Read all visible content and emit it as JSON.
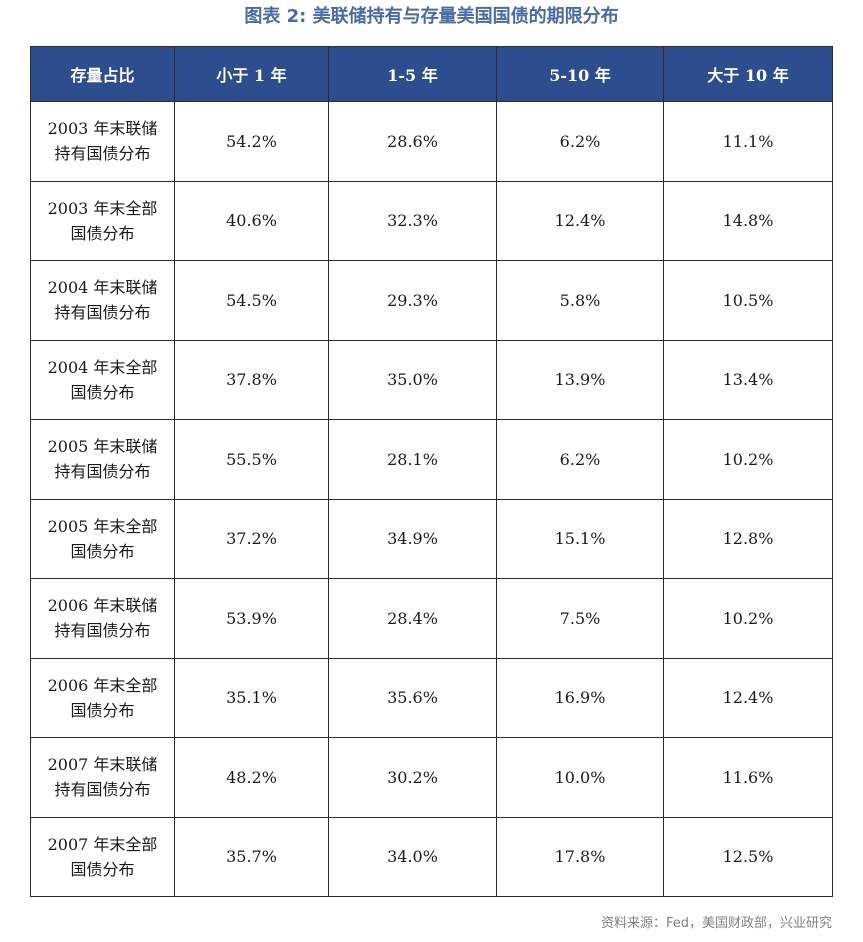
{
  "title": "图表 2:   美联储持有与存量美国国债的期限分布",
  "table": {
    "headers": [
      "存量占比",
      "小于 1 年",
      "1-5 年",
      "5-10 年",
      "大于 10 年"
    ],
    "rows": [
      {
        "label": "2003 年末联储持有国债分布",
        "values": [
          "54.2%",
          "28.6%",
          "6.2%",
          "11.1%"
        ]
      },
      {
        "label": "2003 年末全部国债分布",
        "values": [
          "40.6%",
          "32.3%",
          "12.4%",
          "14.8%"
        ]
      },
      {
        "label": "2004 年末联储持有国债分布",
        "values": [
          "54.5%",
          "29.3%",
          "5.8%",
          "10.5%"
        ]
      },
      {
        "label": "2004 年末全部国债分布",
        "values": [
          "37.8%",
          "35.0%",
          "13.9%",
          "13.4%"
        ]
      },
      {
        "label": "2005 年末联储持有国债分布",
        "values": [
          "55.5%",
          "28.1%",
          "6.2%",
          "10.2%"
        ]
      },
      {
        "label": "2005 年末全部国债分布",
        "values": [
          "37.2%",
          "34.9%",
          "15.1%",
          "12.8%"
        ]
      },
      {
        "label": "2006 年末联储持有国债分布",
        "values": [
          "53.9%",
          "28.4%",
          "7.5%",
          "10.2%"
        ]
      },
      {
        "label": "2006 年末全部国债分布",
        "values": [
          "35.1%",
          "35.6%",
          "16.9%",
          "12.4%"
        ]
      },
      {
        "label": "2007 年末联储持有国债分布",
        "values": [
          "48.2%",
          "30.2%",
          "10.0%",
          "11.6%"
        ]
      },
      {
        "label": "2007 年末全部国债分布",
        "values": [
          "35.7%",
          "34.0%",
          "17.8%",
          "12.5%"
        ]
      }
    ]
  },
  "source": "资料来源：Fed，美国财政部，兴业研究",
  "colors": {
    "header_bg": "#2e4d8f",
    "title": "#4a6aa5",
    "source": "#7f7f7f"
  }
}
